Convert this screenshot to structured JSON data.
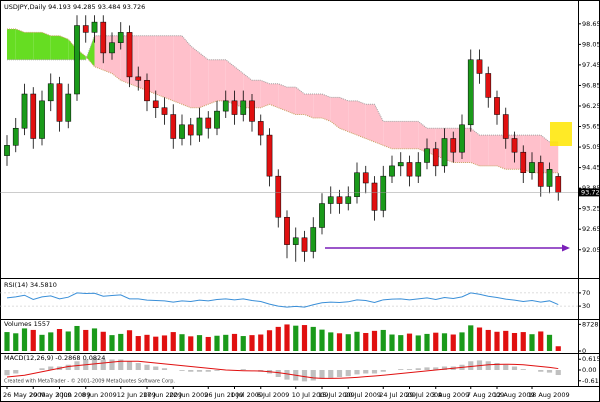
{
  "chart_data": [
    {
      "type": "candlestick",
      "title": "USDJPY,Daily  94.193 94.285 93.484 93.726",
      "categories": [
        "26 May 2009",
        null,
        null,
        "29 May 2009",
        null,
        null,
        "3 Jun 2009",
        null,
        null,
        "8 Jun 2009",
        null,
        null,
        null,
        "12 Jun 2009",
        null,
        null,
        "17 Jun 2009",
        null,
        null,
        "22 Jun 2009",
        null,
        null,
        null,
        "26 Jun 2009",
        null,
        null,
        "1 Jul 2009",
        null,
        null,
        "6 Jul 2009",
        null,
        null,
        null,
        "10 Jul 2009",
        null,
        null,
        "15 Jul 2009",
        null,
        null,
        "20 Jul 2009",
        null,
        null,
        null,
        "24 Jul 2009",
        null,
        null,
        "29 Jul 2009",
        null,
        null,
        "3 Aug 2009",
        null,
        null,
        null,
        "7 Aug 2009",
        null,
        null,
        "12 Aug 2009",
        null,
        null,
        null,
        "18 Aug 2009",
        null,
        null,
        null
      ],
      "open": [
        94.8,
        95.1,
        95.6,
        96.6,
        95.3,
        96.4,
        96.9,
        95.8,
        96.6,
        98.6,
        98.4,
        98.7,
        97.8,
        98.1,
        98.4,
        97.1,
        97.0,
        96.4,
        96.2,
        96.0,
        95.3,
        95.7,
        95.4,
        95.9,
        95.6,
        96.1,
        96.4,
        96.0,
        96.4,
        95.8,
        95.4,
        94.2,
        93.0,
        92.2,
        92.4,
        92.0,
        92.7,
        93.4,
        93.6,
        93.4,
        93.6,
        94.3,
        94.0,
        93.2,
        94.2,
        94.5,
        94.6,
        94.2,
        94.6,
        95.0,
        94.5,
        95.3,
        94.9,
        95.7,
        97.6,
        97.2,
        96.5,
        96.0,
        95.3,
        94.9,
        94.3,
        94.6,
        93.9,
        94.193
      ],
      "high": [
        95.4,
        95.9,
        96.9,
        96.8,
        96.7,
        97.2,
        97.1,
        96.9,
        98.9,
        98.9,
        98.9,
        98.9,
        98.4,
        98.7,
        98.6,
        97.4,
        97.2,
        96.7,
        96.5,
        96.3,
        96.0,
        95.9,
        96.2,
        96.1,
        96.4,
        96.7,
        96.7,
        96.7,
        96.6,
        96.0,
        95.6,
        94.4,
        93.2,
        92.7,
        92.6,
        93.0,
        93.7,
        93.9,
        93.8,
        93.9,
        94.6,
        94.5,
        94.2,
        94.5,
        94.8,
        94.9,
        94.8,
        94.9,
        95.3,
        95.2,
        95.6,
        95.5,
        96.0,
        97.9,
        97.9,
        97.4,
        96.7,
        96.2,
        95.5,
        95.1,
        94.9,
        94.8,
        94.6,
        94.285
      ],
      "low": [
        94.5,
        94.9,
        95.4,
        95.0,
        95.1,
        96.1,
        95.5,
        95.6,
        96.4,
        98.1,
        98.1,
        97.5,
        97.6,
        97.9,
        96.8,
        96.7,
        96.1,
        95.9,
        95.7,
        95.0,
        95.1,
        95.1,
        95.2,
        95.3,
        95.4,
        95.9,
        95.7,
        95.8,
        95.5,
        95.1,
        93.9,
        92.7,
        91.8,
        91.7,
        91.7,
        91.8,
        92.5,
        93.1,
        93.1,
        93.2,
        93.4,
        93.7,
        92.9,
        93.0,
        94.0,
        94.2,
        93.9,
        94.0,
        94.4,
        94.2,
        94.3,
        94.6,
        94.7,
        95.5,
        96.9,
        96.2,
        95.7,
        95.0,
        94.6,
        94.0,
        94.1,
        93.6,
        93.7,
        93.484
      ],
      "close": [
        95.1,
        95.6,
        96.6,
        95.3,
        96.4,
        96.9,
        95.8,
        96.6,
        98.6,
        98.4,
        98.7,
        97.8,
        98.1,
        98.4,
        97.1,
        97.0,
        96.4,
        96.2,
        96.0,
        95.3,
        95.7,
        95.4,
        95.9,
        95.6,
        96.1,
        96.4,
        96.0,
        96.4,
        95.8,
        95.4,
        94.2,
        93.0,
        92.2,
        92.4,
        92.0,
        92.7,
        93.4,
        93.6,
        93.4,
        93.6,
        94.3,
        94.0,
        93.2,
        94.2,
        94.5,
        94.6,
        94.2,
        94.6,
        95.0,
        94.5,
        95.3,
        94.9,
        95.7,
        97.6,
        97.2,
        96.5,
        96.0,
        95.3,
        94.9,
        94.3,
        94.6,
        93.9,
        94.4,
        93.726
      ],
      "up_color": "#1a9a1a",
      "down_color": "#e01010",
      "cloud": {
        "span_a": [
          98.5,
          98.5,
          98.4,
          98.4,
          98.4,
          98.3,
          98.3,
          98.2,
          97.9,
          97.7,
          97.4,
          97.3,
          97.2,
          97.0,
          96.9,
          96.8,
          96.7,
          96.6,
          96.5,
          96.4,
          96.3,
          96.2,
          96.2,
          96.3,
          96.4,
          96.4,
          96.3,
          96.2,
          96.2,
          96.2,
          96.3,
          96.2,
          96.1,
          96.0,
          96.0,
          95.9,
          95.9,
          95.8,
          95.6,
          95.5,
          95.4,
          95.3,
          95.2,
          95.1,
          95.0,
          95.0,
          95.0,
          95.0,
          94.9,
          94.8,
          94.7,
          94.6,
          94.6,
          94.6,
          94.5,
          94.5,
          94.5,
          94.4,
          94.4,
          94.4,
          94.3,
          94.3,
          94.3,
          94.3
        ],
        "span_b": [
          97.6,
          97.6,
          97.6,
          97.6,
          97.6,
          97.6,
          97.6,
          97.6,
          97.6,
          97.6,
          98.3,
          98.3,
          98.3,
          98.3,
          98.3,
          98.3,
          98.3,
          98.3,
          98.3,
          98.3,
          98.3,
          98.0,
          97.8,
          97.6,
          97.6,
          97.6,
          97.4,
          97.2,
          97.0,
          97.0,
          96.9,
          96.9,
          96.8,
          96.8,
          96.6,
          96.6,
          96.6,
          96.5,
          96.5,
          96.4,
          96.4,
          96.3,
          96.3,
          95.8,
          95.8,
          95.8,
          95.8,
          95.8,
          95.6,
          95.6,
          95.6,
          95.6,
          95.6,
          95.6,
          95.4,
          95.4,
          95.4,
          95.4,
          95.4,
          95.4,
          95.4,
          95.4,
          95.2,
          95.2
        ],
        "up_color": "#66dd22",
        "down_color": "#ffc0cb"
      },
      "ylim": [
        91.4,
        99.2
      ],
      "yticks": [
        {
          "value": 98.65,
          "label": "98.650"
        },
        {
          "value": 98.05,
          "label": "98.050"
        },
        {
          "value": 97.45,
          "label": "97.450"
        },
        {
          "value": 96.85,
          "label": "96.850"
        },
        {
          "value": 96.25,
          "label": "96.250"
        },
        {
          "value": 95.65,
          "label": "95.650"
        },
        {
          "value": 95.05,
          "label": "95.050"
        },
        {
          "value": 94.45,
          "label": "94.450"
        },
        {
          "value": 93.85,
          "label": "93.850"
        },
        {
          "value": 93.25,
          "label": "93.250"
        },
        {
          "value": 92.65,
          "label": "92.650"
        },
        {
          "value": 92.05,
          "label": "92.050"
        }
      ],
      "last_price": 93.726
    },
    {
      "type": "line",
      "title": "RSI(14) 34.5810",
      "values": [
        55,
        58,
        63,
        50,
        58,
        61,
        52,
        57,
        70,
        68,
        69,
        60,
        62,
        64,
        52,
        52,
        48,
        47,
        46,
        42,
        46,
        44,
        48,
        46,
        50,
        52,
        49,
        52,
        47,
        44,
        36,
        30,
        27,
        29,
        27,
        34,
        40,
        42,
        41,
        43,
        49,
        47,
        41,
        49,
        51,
        52,
        49,
        52,
        55,
        50,
        56,
        53,
        58,
        70,
        66,
        60,
        56,
        51,
        48,
        44,
        47,
        42,
        46,
        34.581
      ],
      "color": "#3a8fd8",
      "ylim": [
        0,
        100
      ],
      "yticks": [
        70,
        30
      ]
    },
    {
      "type": "bar",
      "title": "Volumes 1557",
      "values": [
        6200,
        5800,
        7400,
        6900,
        5300,
        6100,
        7200,
        6400,
        8200,
        6900,
        7400,
        6300,
        5200,
        5600,
        6800,
        4900,
        5300,
        4700,
        5100,
        6200,
        5500,
        4800,
        5200,
        4600,
        5000,
        5300,
        5600,
        4900,
        5200,
        5400,
        6800,
        7900,
        8700,
        8300,
        8500,
        7900,
        7000,
        6100,
        5800,
        5500,
        6300,
        5900,
        6600,
        6900,
        5400,
        5200,
        5700,
        5100,
        5600,
        6000,
        5800,
        5400,
        6100,
        8400,
        7700,
        6900,
        6300,
        6600,
        5900,
        6200,
        5500,
        6400,
        5300,
        1557
      ],
      "up_color": "#1a9a1a",
      "down_color": "#e01010",
      "ylim": [
        0,
        9500
      ],
      "yticks": [
        8728,
        0
      ]
    },
    {
      "type": "macd",
      "title": "MACD(12,26,9) -0.2868 0.0824",
      "annotation": "Created with MetaTrader - © 2001-2009 MetaQuotes Software Corp.",
      "values": [
        -0.3,
        -0.2,
        0.0,
        0.0,
        0.1,
        0.2,
        0.2,
        0.3,
        0.5,
        0.6,
        0.7,
        0.6,
        0.6,
        0.6,
        0.5,
        0.4,
        0.3,
        0.2,
        0.1,
        0.0,
        -0.05,
        -0.1,
        -0.1,
        -0.1,
        -0.05,
        0.0,
        0.0,
        0.05,
        0.0,
        -0.1,
        -0.2,
        -0.4,
        -0.55,
        -0.6,
        -0.65,
        -0.6,
        -0.5,
        -0.45,
        -0.4,
        -0.35,
        -0.25,
        -0.2,
        -0.2,
        -0.1,
        0.0,
        0.05,
        0.05,
        0.1,
        0.15,
        0.15,
        0.2,
        0.2,
        0.3,
        0.5,
        0.55,
        0.5,
        0.4,
        0.3,
        0.2,
        0.05,
        0.0,
        -0.1,
        -0.15,
        -0.2868
      ],
      "signal": [
        -0.4,
        -0.35,
        -0.3,
        -0.2,
        -0.1,
        0.0,
        0.1,
        0.2,
        0.25,
        0.3,
        0.35,
        0.4,
        0.45,
        0.5,
        0.5,
        0.5,
        0.45,
        0.4,
        0.35,
        0.3,
        0.25,
        0.2,
        0.15,
        0.1,
        0.05,
        0.0,
        -0.02,
        -0.04,
        -0.05,
        -0.06,
        -0.1,
        -0.15,
        -0.22,
        -0.3,
        -0.38,
        -0.45,
        -0.48,
        -0.48,
        -0.47,
        -0.45,
        -0.42,
        -0.38,
        -0.34,
        -0.3,
        -0.25,
        -0.2,
        -0.15,
        -0.1,
        -0.05,
        0.0,
        0.05,
        0.1,
        0.15,
        0.2,
        0.25,
        0.3,
        0.32,
        0.33,
        0.32,
        0.3,
        0.25,
        0.2,
        0.15,
        0.0824
      ],
      "hist_color": "#c0c0c0",
      "signal_color": "#e01010",
      "ylim": [
        -0.8,
        0.8
      ],
      "yticks": [
        0.6152,
        {
          "value": 0,
          "label": "0.00"
        },
        -0.6152
      ]
    }
  ]
}
